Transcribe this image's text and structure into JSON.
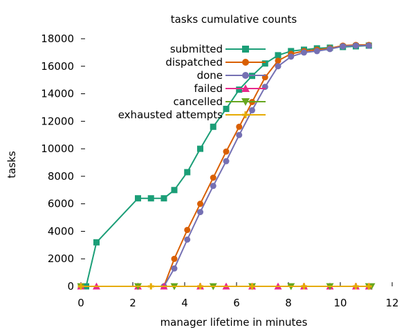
{
  "chart_data": {
    "type": "line",
    "title": "tasks cumulative counts",
    "xlabel": "manager lifetime in minutes",
    "ylabel": "tasks",
    "xlim": [
      0,
      12
    ],
    "ylim": [
      0,
      18000
    ],
    "xticks": [
      0,
      2,
      4,
      6,
      8,
      10,
      12
    ],
    "yticks": [
      0,
      2000,
      4000,
      6000,
      8000,
      10000,
      12000,
      14000,
      16000,
      18000
    ],
    "grid": false,
    "legend_position": "top-right",
    "series": [
      {
        "name": "submitted",
        "color": "#1b9e77",
        "marker": "square",
        "points": [
          [
            0,
            0
          ],
          [
            0.2,
            0
          ],
          [
            0.6,
            3200
          ],
          [
            2.2,
            6400
          ],
          [
            2.7,
            6400
          ],
          [
            3.2,
            6400
          ],
          [
            3.6,
            7000
          ],
          [
            4.1,
            8300
          ],
          [
            4.6,
            10000
          ],
          [
            5.1,
            11600
          ],
          [
            5.6,
            12900
          ],
          [
            6.1,
            14300
          ],
          [
            6.6,
            15300
          ],
          [
            7.1,
            16200
          ],
          [
            7.6,
            16800
          ],
          [
            8.1,
            17100
          ],
          [
            8.6,
            17200
          ],
          [
            9.1,
            17300
          ],
          [
            9.6,
            17350
          ],
          [
            10.1,
            17400
          ],
          [
            10.6,
            17450
          ],
          [
            11.1,
            17500
          ]
        ]
      },
      {
        "name": "dispatched",
        "color": "#d95f02",
        "marker": "circle",
        "points": [
          [
            3.2,
            0
          ],
          [
            3.6,
            2000
          ],
          [
            4.1,
            4100
          ],
          [
            4.6,
            6000
          ],
          [
            5.1,
            7900
          ],
          [
            5.6,
            9800
          ],
          [
            6.1,
            11600
          ],
          [
            6.6,
            13400
          ],
          [
            7.1,
            15200
          ],
          [
            7.6,
            16400
          ],
          [
            8.1,
            16900
          ],
          [
            8.6,
            17100
          ],
          [
            9.1,
            17200
          ],
          [
            9.6,
            17300
          ],
          [
            10.1,
            17500
          ],
          [
            10.6,
            17550
          ],
          [
            11.1,
            17550
          ]
        ]
      },
      {
        "name": "done",
        "color": "#7570b3",
        "marker": "circle",
        "points": [
          [
            3.2,
            0
          ],
          [
            3.6,
            1300
          ],
          [
            4.1,
            3400
          ],
          [
            4.6,
            5400
          ],
          [
            5.1,
            7300
          ],
          [
            5.6,
            9100
          ],
          [
            6.1,
            11000
          ],
          [
            6.6,
            12800
          ],
          [
            7.1,
            14500
          ],
          [
            7.6,
            16000
          ],
          [
            8.1,
            16700
          ],
          [
            8.6,
            17000
          ],
          [
            9.1,
            17100
          ],
          [
            9.6,
            17250
          ],
          [
            10.1,
            17450
          ],
          [
            10.6,
            17500
          ],
          [
            11.1,
            17500
          ]
        ]
      },
      {
        "name": "failed",
        "color": "#e7298a",
        "marker": "triangle-up",
        "points": [
          [
            0,
            0
          ],
          [
            0.6,
            0
          ],
          [
            2.2,
            0
          ],
          [
            3.2,
            0
          ],
          [
            4.6,
            0
          ],
          [
            5.6,
            0
          ],
          [
            6.6,
            0
          ],
          [
            7.6,
            0
          ],
          [
            8.6,
            0
          ],
          [
            9.6,
            0
          ],
          [
            10.6,
            0
          ],
          [
            11.1,
            0
          ]
        ]
      },
      {
        "name": "cancelled",
        "color": "#66a61e",
        "marker": "triangle-down",
        "points": [
          [
            0,
            0
          ],
          [
            2.2,
            0
          ],
          [
            3.6,
            0
          ],
          [
            5.1,
            0
          ],
          [
            6.6,
            0
          ],
          [
            8.1,
            0
          ],
          [
            9.6,
            0
          ],
          [
            11.1,
            0
          ],
          [
            11.2,
            0
          ]
        ]
      },
      {
        "name": "exhausted attempts",
        "color": "#e6ab02",
        "marker": "cross",
        "points": [
          [
            0,
            0
          ],
          [
            2.7,
            0
          ],
          [
            4.6,
            0
          ],
          [
            6.6,
            0
          ],
          [
            8.6,
            0
          ],
          [
            10.6,
            0
          ],
          [
            11.1,
            0
          ]
        ]
      }
    ]
  }
}
